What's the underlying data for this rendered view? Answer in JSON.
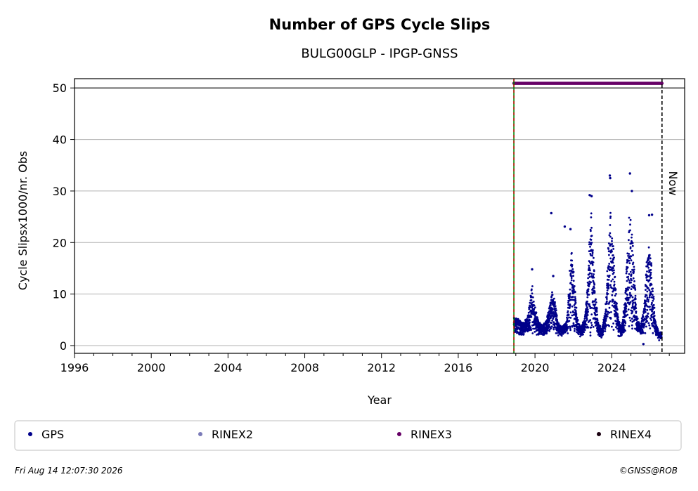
{
  "chart_data": {
    "type": "scatter",
    "title": "Number of GPS Cycle Slips",
    "subtitle": "BULG00GLP - IPGP-GNSS",
    "xlabel": "Year",
    "ylabel": "Cycle Slipsx1000/nr. Obs",
    "xlim": [
      1996,
      2027.8
    ],
    "ylim": [
      -1.5,
      51.8
    ],
    "xticks": [
      1996,
      2000,
      2004,
      2008,
      2012,
      2016,
      2020,
      2024
    ],
    "yticks": [
      0,
      10,
      20,
      30,
      40,
      50
    ],
    "grid": "y",
    "reference_line_y": 50,
    "start_line_x": 2018.9,
    "now_line_x": 2026.62,
    "now_label": "Now",
    "legend_position": "bottom",
    "colors": {
      "GPS": "#00008b",
      "RINEX2": "#7b7bb8",
      "RINEX3": "#660066",
      "RINEX4": "#1a0010",
      "start_line_green": "#008000",
      "start_line_red": "#cc0000",
      "grid": "#b0b0b0"
    },
    "series": [
      {
        "name": "GPS",
        "envelope_points": [
          [
            2018.9,
            5.5
          ],
          [
            2019.0,
            5.0
          ],
          [
            2019.2,
            4.5
          ],
          [
            2019.4,
            4.0
          ],
          [
            2019.6,
            5.0
          ],
          [
            2019.75,
            9.0
          ],
          [
            2019.85,
            11.0
          ],
          [
            2020.0,
            7.0
          ],
          [
            2020.2,
            4.0
          ],
          [
            2020.4,
            3.5
          ],
          [
            2020.6,
            4.5
          ],
          [
            2020.8,
            8.0
          ],
          [
            2020.9,
            11.0
          ],
          [
            2021.0,
            9.0
          ],
          [
            2021.2,
            4.0
          ],
          [
            2021.4,
            3.0
          ],
          [
            2021.6,
            4.0
          ],
          [
            2021.7,
            6.0
          ],
          [
            2021.8,
            13.0
          ],
          [
            2021.9,
            18.0
          ],
          [
            2022.0,
            14.0
          ],
          [
            2022.2,
            5.0
          ],
          [
            2022.4,
            3.0
          ],
          [
            2022.6,
            5.0
          ],
          [
            2022.75,
            12.0
          ],
          [
            2022.85,
            22.0
          ],
          [
            2022.95,
            24.0
          ],
          [
            2023.1,
            12.0
          ],
          [
            2023.3,
            4.0
          ],
          [
            2023.5,
            2.5
          ],
          [
            2023.7,
            8.0
          ],
          [
            2023.85,
            20.0
          ],
          [
            2023.95,
            24.0
          ],
          [
            2024.1,
            18.0
          ],
          [
            2024.3,
            6.0
          ],
          [
            2024.5,
            3.0
          ],
          [
            2024.7,
            9.0
          ],
          [
            2024.85,
            20.0
          ],
          [
            2024.95,
            25.0
          ],
          [
            2025.1,
            18.0
          ],
          [
            2025.3,
            6.0
          ],
          [
            2025.5,
            3.0
          ],
          [
            2025.7,
            8.0
          ],
          [
            2025.85,
            17.0
          ],
          [
            2025.95,
            20.0
          ],
          [
            2026.1,
            13.0
          ],
          [
            2026.3,
            4.0
          ],
          [
            2026.45,
            2.0
          ],
          [
            2026.6,
            2.0
          ]
        ],
        "outliers": [
          [
            2020.85,
            25.7
          ],
          [
            2021.55,
            23.1
          ],
          [
            2021.85,
            22.6
          ],
          [
            2022.85,
            29.2
          ],
          [
            2022.95,
            29.0
          ],
          [
            2023.9,
            33.0
          ],
          [
            2023.92,
            32.5
          ],
          [
            2024.95,
            33.4
          ],
          [
            2025.05,
            30.0
          ],
          [
            2025.95,
            25.3
          ],
          [
            2026.1,
            25.4
          ],
          [
            2025.65,
            0.3
          ],
          [
            2019.85,
            14.8
          ],
          [
            2020.95,
            13.5
          ]
        ]
      },
      {
        "name": "RINEX2",
        "values": []
      },
      {
        "name": "RINEX3",
        "x_range": [
          2018.9,
          2026.62
        ],
        "y": 50.9
      },
      {
        "name": "RINEX4",
        "values": []
      }
    ]
  },
  "footer": {
    "timestamp": "Fri Aug 14 12:07:30 2026",
    "copyright": "©GNSS@ROB"
  }
}
